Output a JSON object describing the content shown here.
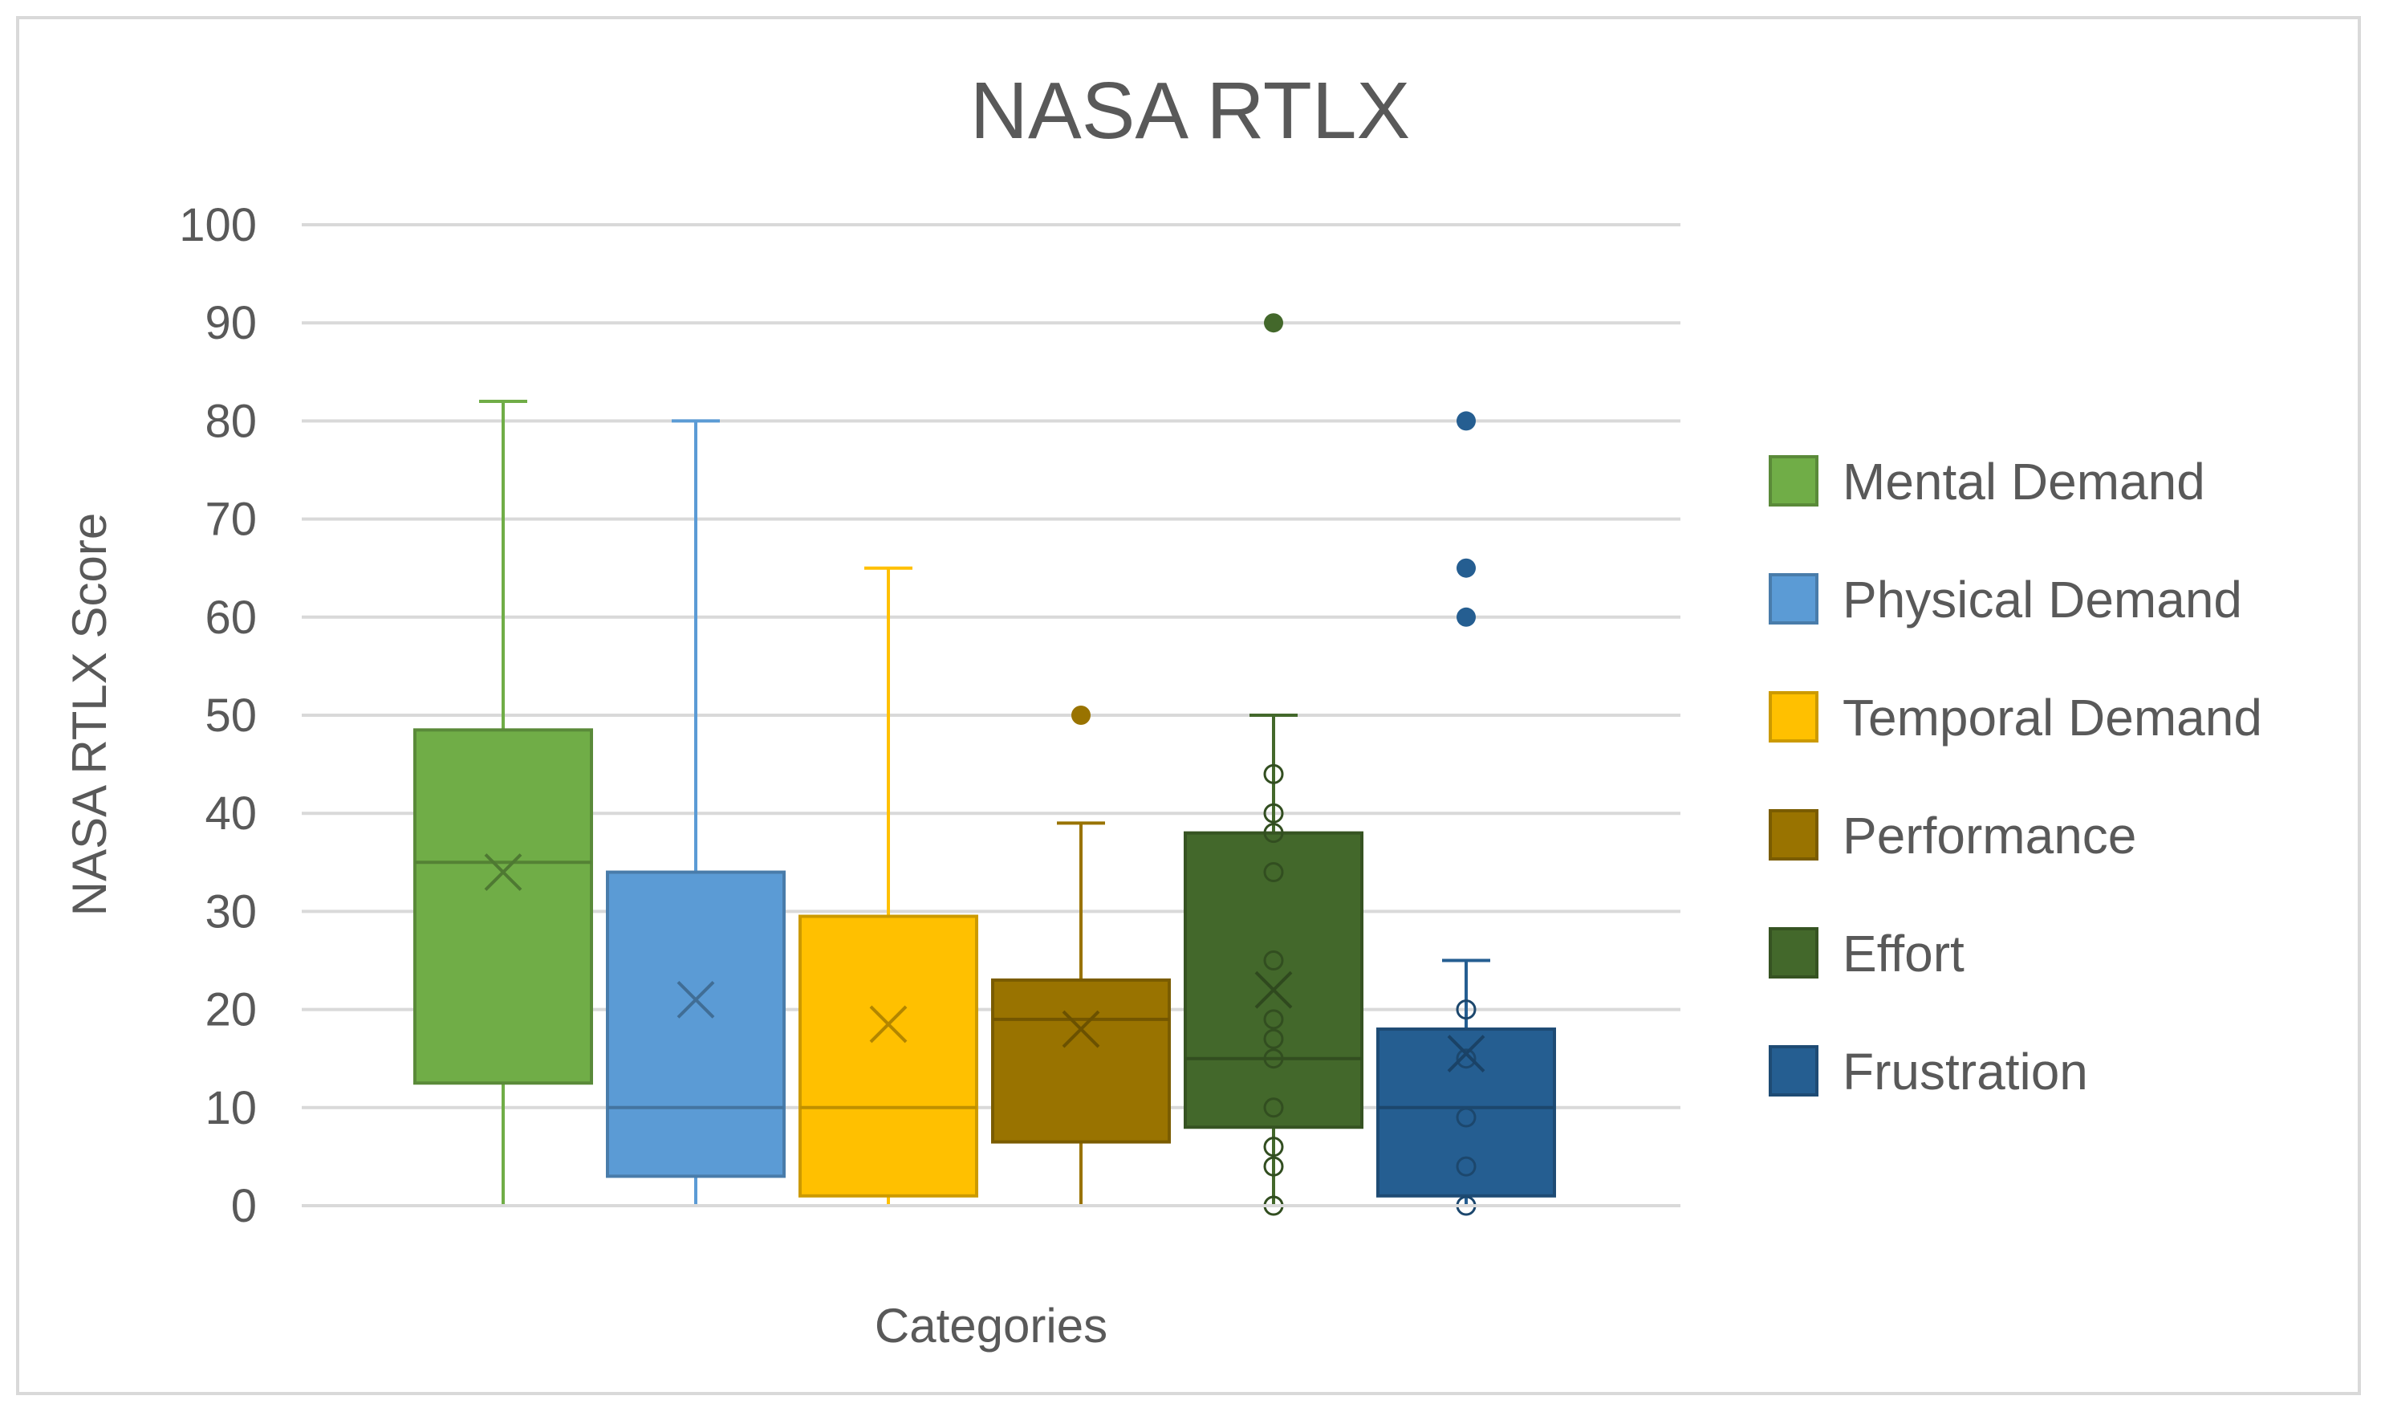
{
  "chart_data": {
    "type": "boxplot",
    "title": "NASA RTLX",
    "xlabel": "Categories",
    "ylabel": "NASA RTLX Score",
    "ylim": [
      0,
      100
    ],
    "yticks": [
      0,
      10,
      20,
      30,
      40,
      50,
      60,
      70,
      80,
      90,
      100
    ],
    "grid": true,
    "legend_position": "right",
    "series": [
      {
        "name": "Mental Demand",
        "color": "#70AD47",
        "min": 0,
        "q1": 12.5,
        "median": 35,
        "q3": 48.5,
        "max": 82,
        "mean": 34,
        "outliers": [],
        "points": []
      },
      {
        "name": "Physical Demand",
        "color": "#5B9BD5",
        "min": 0,
        "q1": 3,
        "median": 10,
        "q3": 34,
        "max": 80,
        "mean": 21,
        "outliers": [],
        "points": []
      },
      {
        "name": "Temporal Demand",
        "color": "#FFC000",
        "min": 0,
        "q1": 1,
        "median": 10,
        "q3": 29.5,
        "max": 65,
        "mean": 18.5,
        "outliers": [],
        "points": []
      },
      {
        "name": "Performance",
        "color": "#997300",
        "min": 0,
        "q1": 6.5,
        "median": 19,
        "q3": 23,
        "max": 39,
        "mean": 18,
        "outliers": [
          50
        ],
        "points": []
      },
      {
        "name": "Effort",
        "color": "#43682B",
        "min": 0,
        "q1": 8,
        "median": 15,
        "q3": 38,
        "max": 50,
        "mean": 22,
        "outliers": [
          90
        ],
        "points": [
          0,
          4,
          6,
          10,
          15,
          17,
          19,
          25,
          34,
          38,
          40,
          44
        ]
      },
      {
        "name": "Frustration",
        "color": "#255E91",
        "min": 0,
        "q1": 1,
        "median": 10,
        "q3": 18,
        "max": 25,
        "mean": 15.5,
        "outliers": [
          60,
          65,
          80
        ],
        "points": [
          0,
          4,
          9,
          15,
          20
        ]
      }
    ]
  }
}
